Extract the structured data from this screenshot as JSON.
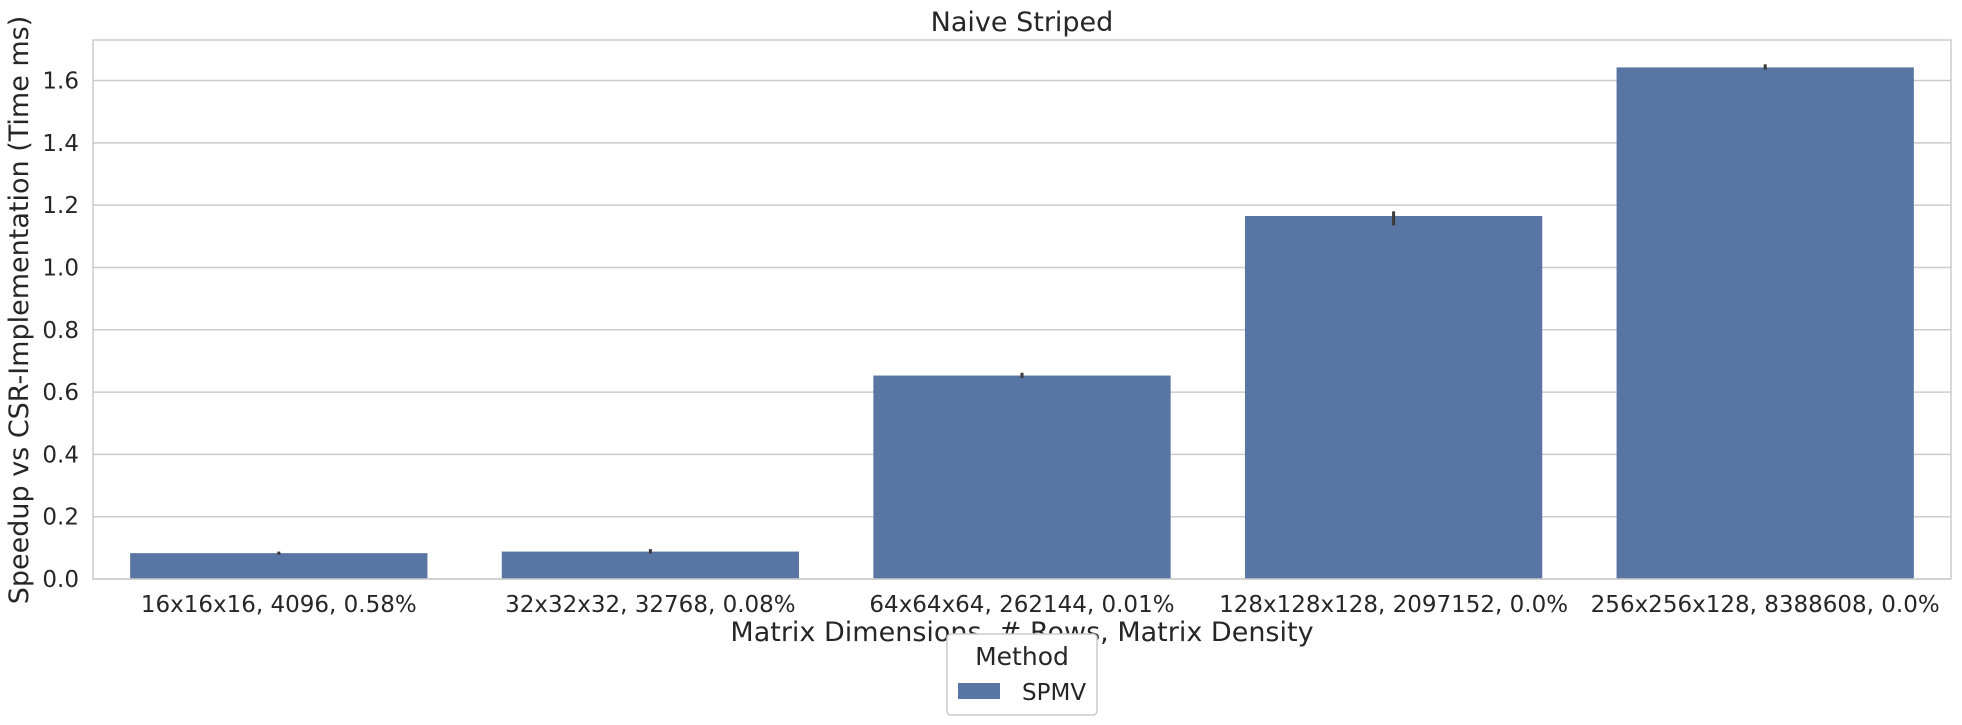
{
  "chart_data": {
    "type": "bar",
    "title": "Naive Striped",
    "xlabel": "Matrix Dimensions, # Rows, Matrix Density",
    "ylabel": "Speedup vs CSR-Implementation (Time ms)",
    "categories": [
      "16x16x16, 4096, 0.58%",
      "32x32x32, 32768, 0.08%",
      "64x64x64, 262144, 0.01%",
      "128x128x128, 2097152, 0.0%",
      "256x256x128, 8388608, 0.0%"
    ],
    "series": [
      {
        "name": "SPMV",
        "values": [
          0.083,
          0.088,
          0.653,
          1.165,
          1.642
        ],
        "error_low": [
          0.078,
          0.082,
          0.645,
          1.135,
          1.635
        ],
        "error_high": [
          0.088,
          0.096,
          0.662,
          1.18,
          1.652
        ]
      }
    ],
    "ylim": [
      0,
      1.73
    ],
    "yticks": [
      0.0,
      0.2,
      0.4,
      0.6,
      0.8,
      1.0,
      1.2,
      1.4,
      1.6
    ],
    "ytick_labels": [
      "0.0",
      "0.2",
      "0.4",
      "0.6",
      "0.8",
      "1.0",
      "1.2",
      "1.4",
      "1.6"
    ],
    "grid": "horizontal",
    "legend": {
      "title": "Method",
      "placement": "bottom-center"
    },
    "colors": {
      "bar": "#5975a4",
      "error": "#3b3b3b",
      "grid": "#cccccc",
      "frame": "#cccccc"
    }
  }
}
